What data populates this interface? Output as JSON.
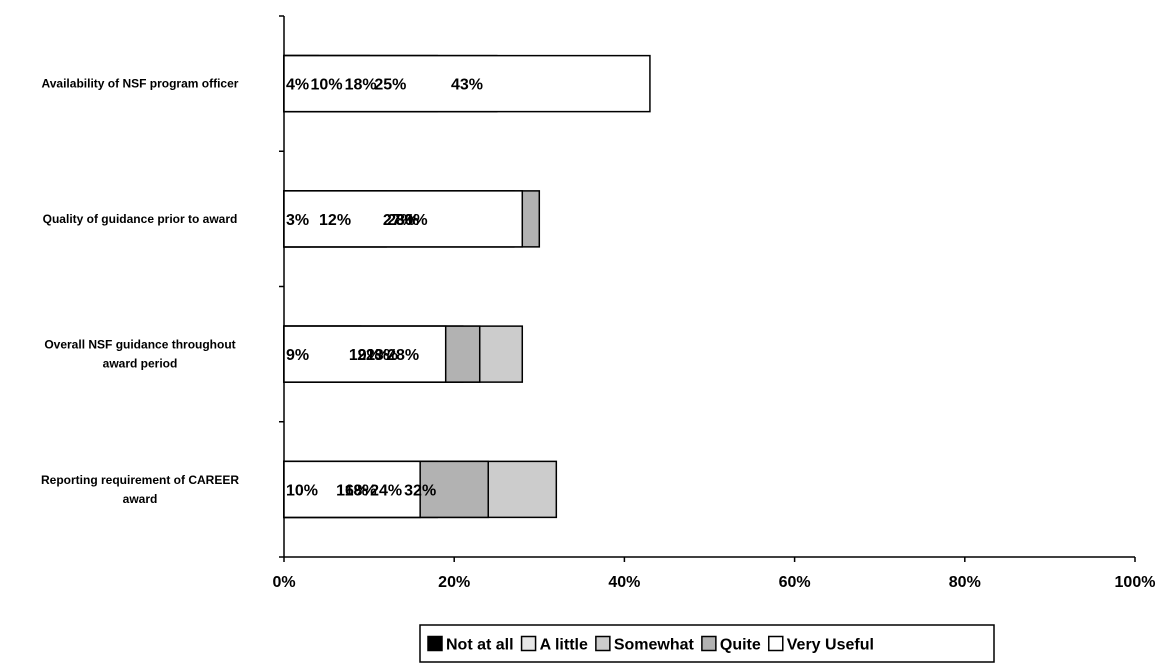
{
  "chart_data": {
    "type": "bar",
    "stacked": true,
    "orientation": "horizontal",
    "percent_stacked": true,
    "categories": [
      "Availability of NSF program officer",
      "Quality of guidance prior to award",
      "Overall NSF guidance throughout award period",
      "Reporting requirement of CAREER award"
    ],
    "category_lines": [
      [
        "Availability of NSF program officer"
      ],
      [
        "Quality of guidance prior to award"
      ],
      [
        "Overall NSF guidance throughout",
        "award period"
      ],
      [
        "Reporting requirement of CAREER",
        "award"
      ]
    ],
    "series": [
      {
        "name": "Not at all",
        "color": "#000000",
        "values": [
          4,
          3,
          9,
          10
        ],
        "labels": [
          "4%",
          "3%",
          "9%",
          "10%"
        ]
      },
      {
        "name": "A little",
        "color": "#e6e6e6",
        "values": [
          10,
          12,
          21,
          18
        ],
        "labels": [
          "10%",
          "12%",
          "21%",
          "18%"
        ]
      },
      {
        "name": "Somewhat",
        "color": "#cccccc",
        "values": [
          18,
          27,
          28,
          32
        ],
        "labels": [
          "18%",
          "27%",
          "28%",
          "32%"
        ]
      },
      {
        "name": "Quite",
        "color": "#b2b2b2",
        "values": [
          25,
          30,
          23,
          24
        ],
        "labels": [
          "25%",
          "30%",
          "23%",
          "24%"
        ]
      },
      {
        "name": "Very Useful",
        "color": "#ffffff",
        "values": [
          43,
          28,
          19,
          16
        ],
        "labels": [
          "43%",
          "28%",
          "19%",
          "16%"
        ]
      }
    ],
    "x_ticks": [
      "0%",
      "20%",
      "40%",
      "60%",
      "80%",
      "100%"
    ],
    "xlim": [
      0,
      100
    ],
    "grid": false,
    "legend": "bottom",
    "title": "",
    "xlabel": "",
    "ylabel": ""
  }
}
